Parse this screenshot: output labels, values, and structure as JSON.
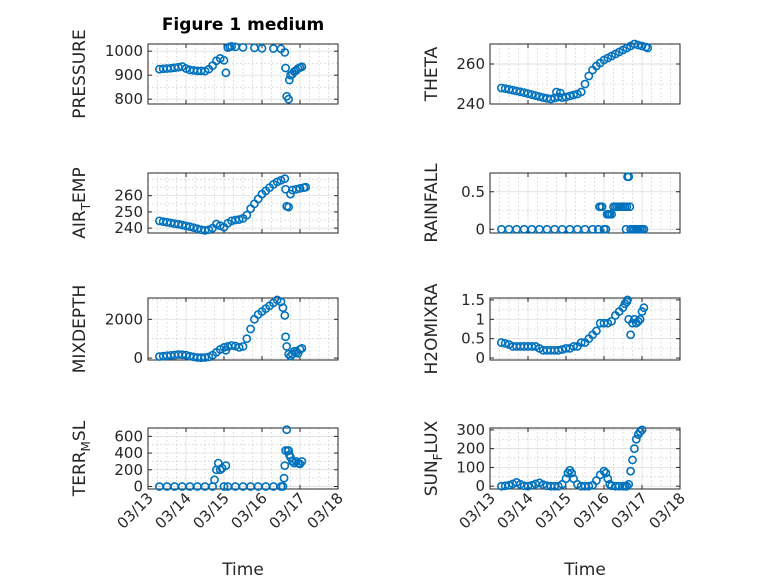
{
  "figure": {
    "title": "Figure 1 medium",
    "marker_color": "#0072BD"
  },
  "chart_data": [
    {
      "type": "scatter",
      "ylabel": "PRESSURE",
      "xlabel": "",
      "title": "Figure 1 medium",
      "xlim": [
        "03/13",
        "03/18"
      ],
      "ylim": [
        780,
        1030
      ],
      "yticks": [
        800,
        900,
        1000
      ],
      "ytick_labels": [
        "800",
        "900",
        "1000"
      ],
      "yminor": [
        850,
        950
      ],
      "x_tick_labels_shown": false,
      "grid": true,
      "x": [
        0.3,
        0.4,
        0.5,
        0.6,
        0.7,
        0.8,
        0.9,
        1.0,
        1.1,
        1.2,
        1.3,
        1.4,
        1.5,
        1.6,
        1.7,
        1.8,
        1.9,
        2.0,
        2.05,
        2.1,
        2.15,
        2.2,
        2.3,
        2.5,
        2.8,
        3.0,
        3.3,
        3.5,
        3.6,
        3.62,
        3.65,
        3.7,
        3.72,
        3.75,
        3.8,
        3.85,
        3.9,
        3.95,
        4.0,
        4.05
      ],
      "y": [
        925,
        927,
        928,
        929,
        931,
        933,
        936,
        928,
        922,
        920,
        918,
        918,
        917,
        925,
        940,
        960,
        970,
        962,
        910,
        1015,
        1018,
        1020,
        1018,
        1016,
        1014,
        1012,
        1011,
        1010,
        995,
        930,
        812,
        800,
        880,
        900,
        905,
        915,
        920,
        928,
        932,
        935
      ]
    },
    {
      "type": "scatter",
      "ylabel": "THETA",
      "xlabel": "",
      "xlim": [
        "03/13",
        "03/18"
      ],
      "ylim": [
        240,
        270
      ],
      "yticks": [
        240,
        260
      ],
      "ytick_labels": [
        "240",
        "260"
      ],
      "yminor": [
        250
      ],
      "x_tick_labels_shown": false,
      "grid": true,
      "x": [
        0.3,
        0.4,
        0.5,
        0.6,
        0.7,
        0.8,
        0.9,
        1.0,
        1.1,
        1.2,
        1.3,
        1.4,
        1.5,
        1.6,
        1.7,
        1.75,
        1.8,
        1.85,
        1.9,
        2.0,
        2.1,
        2.2,
        2.3,
        2.4,
        2.5,
        2.6,
        2.7,
        2.8,
        2.9,
        3.0,
        3.1,
        3.2,
        3.3,
        3.4,
        3.5,
        3.6,
        3.7,
        3.8,
        3.9,
        4.0,
        4.1,
        4.15
      ],
      "y": [
        248,
        247.7,
        247.3,
        246.9,
        246.5,
        246.1,
        245.7,
        245.2,
        244.7,
        244.2,
        243.7,
        243.2,
        242.8,
        242.5,
        243,
        246,
        243.5,
        245.5,
        243.2,
        243.5,
        244,
        244.5,
        245,
        246,
        250,
        254,
        257,
        259,
        260.5,
        262,
        263,
        264,
        265,
        266,
        267,
        268,
        269,
        270,
        269.5,
        269,
        268.5,
        268
      ]
    },
    {
      "type": "scatter",
      "ylabel": "AIR_TEMP",
      "xlabel": "",
      "xlim": [
        "03/13",
        "03/18"
      ],
      "ylim": [
        237,
        274
      ],
      "yticks": [
        240,
        250,
        260
      ],
      "ytick_labels": [
        "240",
        "250",
        "260"
      ],
      "yminor": [
        245,
        255,
        265,
        270
      ],
      "x_tick_labels_shown": false,
      "grid": true,
      "x": [
        0.3,
        0.4,
        0.5,
        0.6,
        0.7,
        0.8,
        0.9,
        1.0,
        1.1,
        1.2,
        1.3,
        1.4,
        1.5,
        1.6,
        1.7,
        1.8,
        1.9,
        2.0,
        2.1,
        2.2,
        2.3,
        2.4,
        2.5,
        2.6,
        2.7,
        2.8,
        2.9,
        3.0,
        3.1,
        3.2,
        3.3,
        3.4,
        3.5,
        3.6,
        3.62,
        3.65,
        3.7,
        3.75,
        3.8,
        3.9,
        4.0,
        4.1,
        4.15
      ],
      "y": [
        244.5,
        244,
        243.6,
        243.2,
        242.8,
        242.4,
        241.9,
        241.4,
        240.9,
        240.3,
        239.6,
        239,
        238.6,
        239,
        240,
        242.5,
        241.5,
        240.5,
        243,
        244.5,
        245,
        245.3,
        246,
        248,
        252,
        255,
        258,
        261,
        263,
        265,
        267,
        268.5,
        269.5,
        270.5,
        264,
        253.5,
        253,
        261,
        263.5,
        264,
        264.5,
        265,
        265.3
      ]
    },
    {
      "type": "scatter",
      "ylabel": "RAINFALL",
      "xlabel": "",
      "xlim": [
        "03/13",
        "03/18"
      ],
      "ylim": [
        -0.05,
        0.75
      ],
      "yticks": [
        0,
        0.5
      ],
      "ytick_labels": [
        "0",
        "0.5"
      ],
      "yminor": [
        0.25
      ],
      "x_tick_labels_shown": false,
      "grid": true,
      "x": [
        0.3,
        0.5,
        0.7,
        0.9,
        1.1,
        1.3,
        1.5,
        1.7,
        1.9,
        2.1,
        2.3,
        2.5,
        2.7,
        2.85,
        2.88,
        2.9,
        2.95,
        3.0,
        3.05,
        3.08,
        3.12,
        3.15,
        3.2,
        3.25,
        3.3,
        3.35,
        3.4,
        3.45,
        3.5,
        3.55,
        3.58,
        3.6,
        3.62,
        3.65,
        3.68,
        3.7,
        3.75,
        3.8,
        3.85,
        3.9,
        3.95,
        4.0,
        4.05
      ],
      "y": [
        0,
        0,
        0,
        0,
        0,
        0,
        0,
        0,
        0,
        0,
        0,
        0,
        0,
        0,
        0.3,
        0.3,
        0.3,
        0,
        0,
        0.2,
        0.2,
        0.2,
        0.2,
        0.3,
        0.3,
        0.3,
        0.3,
        0.3,
        0.3,
        0.3,
        0,
        0.3,
        0.7,
        0.7,
        0.3,
        0,
        0,
        0,
        0,
        0,
        0,
        0,
        0
      ]
    },
    {
      "type": "scatter",
      "ylabel": "MIXDEPTH",
      "xlabel": "",
      "xlim": [
        "03/13",
        "03/18"
      ],
      "ylim": [
        -100,
        3100
      ],
      "yticks": [
        0,
        2000
      ],
      "ytick_labels": [
        "0",
        "2000"
      ],
      "yminor": [
        1000,
        3000
      ],
      "x_tick_labels_shown": false,
      "grid": true,
      "x": [
        0.3,
        0.4,
        0.5,
        0.6,
        0.7,
        0.8,
        0.9,
        1.0,
        1.1,
        1.2,
        1.3,
        1.4,
        1.5,
        1.6,
        1.7,
        1.8,
        1.9,
        2.0,
        2.05,
        2.1,
        2.2,
        2.3,
        2.4,
        2.5,
        2.6,
        2.7,
        2.8,
        2.9,
        3.0,
        3.1,
        3.2,
        3.3,
        3.4,
        3.5,
        3.55,
        3.6,
        3.62,
        3.65,
        3.7,
        3.75,
        3.8,
        3.85,
        3.9,
        3.95,
        4.0,
        4.05
      ],
      "y": [
        80,
        100,
        120,
        140,
        160,
        180,
        170,
        150,
        100,
        60,
        30,
        20,
        30,
        60,
        150,
        300,
        450,
        550,
        400,
        600,
        650,
        620,
        550,
        600,
        1000,
        1500,
        2000,
        2250,
        2400,
        2550,
        2700,
        2850,
        3000,
        2900,
        2600,
        2200,
        1100,
        600,
        200,
        100,
        200,
        350,
        300,
        250,
        450,
        500
      ]
    },
    {
      "type": "scatter",
      "ylabel": "H2OMIXRA",
      "xlabel": "",
      "xlim": [
        "03/13",
        "03/18"
      ],
      "ylim": [
        -0.05,
        1.55
      ],
      "yticks": [
        0,
        0.5,
        1,
        1.5
      ],
      "ytick_labels": [
        "0",
        "0.5",
        "1",
        "1.5"
      ],
      "yminor": [
        0.25,
        0.75,
        1.25
      ],
      "x_tick_labels_shown": false,
      "grid": true,
      "x": [
        0.3,
        0.4,
        0.5,
        0.6,
        0.7,
        0.8,
        0.9,
        1.0,
        1.1,
        1.2,
        1.3,
        1.4,
        1.5,
        1.6,
        1.7,
        1.8,
        1.9,
        2.0,
        2.1,
        2.2,
        2.3,
        2.4,
        2.5,
        2.6,
        2.7,
        2.8,
        2.9,
        3.0,
        3.1,
        3.2,
        3.3,
        3.4,
        3.5,
        3.55,
        3.6,
        3.62,
        3.65,
        3.7,
        3.75,
        3.8,
        3.85,
        3.9,
        3.95,
        4.0,
        4.05
      ],
      "y": [
        0.4,
        0.38,
        0.35,
        0.3,
        0.3,
        0.3,
        0.3,
        0.3,
        0.3,
        0.3,
        0.25,
        0.2,
        0.2,
        0.2,
        0.2,
        0.2,
        0.22,
        0.25,
        0.25,
        0.3,
        0.3,
        0.4,
        0.4,
        0.5,
        0.6,
        0.7,
        0.9,
        0.9,
        0.9,
        0.95,
        1.1,
        1.2,
        1.3,
        1.4,
        1.45,
        1.5,
        1.0,
        0.6,
        0.9,
        1.0,
        0.9,
        0.95,
        1.0,
        1.2,
        1.3
      ]
    },
    {
      "type": "scatter",
      "ylabel": "TERR_MSL",
      "xlabel": "Time",
      "xlim": [
        "03/13",
        "03/18"
      ],
      "ylim": [
        -30,
        700
      ],
      "yticks": [
        0,
        200,
        400,
        600
      ],
      "ytick_labels": [
        "0",
        "200",
        "400",
        "600"
      ],
      "yminor": [
        100,
        300,
        500
      ],
      "x_tick_labels": [
        "03/13",
        "03/14",
        "03/15",
        "03/16",
        "03/17",
        "03/18"
      ],
      "grid": true,
      "x": [
        0.3,
        0.5,
        0.7,
        0.9,
        1.1,
        1.3,
        1.5,
        1.7,
        1.75,
        1.8,
        1.85,
        1.9,
        1.95,
        2.0,
        2.05,
        2.1,
        2.3,
        2.5,
        2.7,
        2.9,
        3.1,
        3.3,
        3.5,
        3.55,
        3.58,
        3.6,
        3.62,
        3.65,
        3.68,
        3.7,
        3.72,
        3.75,
        3.8,
        3.85,
        3.9,
        3.95,
        4.0,
        4.05
      ],
      "y": [
        0,
        0,
        0,
        0,
        0,
        0,
        0,
        0,
        80,
        200,
        280,
        200,
        220,
        0,
        250,
        0,
        0,
        0,
        0,
        0,
        0,
        0,
        0,
        0,
        100,
        250,
        430,
        680,
        430,
        430,
        380,
        350,
        300,
        280,
        300,
        280,
        270,
        300
      ]
    },
    {
      "type": "scatter",
      "ylabel": "SUN_FLUX",
      "xlabel": "Time",
      "xlim": [
        "03/13",
        "03/18"
      ],
      "ylim": [
        -15,
        310
      ],
      "yticks": [
        0,
        100,
        200,
        300
      ],
      "ytick_labels": [
        "0",
        "100",
        "200",
        "300"
      ],
      "yminor": [
        50,
        150,
        250
      ],
      "x_tick_labels": [
        "03/13",
        "03/14",
        "03/15",
        "03/16",
        "03/17",
        "03/18"
      ],
      "grid": true,
      "x": [
        0.3,
        0.4,
        0.5,
        0.6,
        0.7,
        0.8,
        0.9,
        1.0,
        1.1,
        1.2,
        1.3,
        1.4,
        1.5,
        1.6,
        1.7,
        1.8,
        1.9,
        2.0,
        2.05,
        2.1,
        2.15,
        2.2,
        2.3,
        2.4,
        2.5,
        2.6,
        2.7,
        2.8,
        2.9,
        3.0,
        3.05,
        3.1,
        3.15,
        3.2,
        3.3,
        3.4,
        3.5,
        3.55,
        3.6,
        3.65,
        3.7,
        3.75,
        3.8,
        3.85,
        3.9,
        3.95,
        4.0
      ],
      "y": [
        0,
        2,
        5,
        12,
        20,
        10,
        2,
        0,
        5,
        12,
        18,
        8,
        2,
        0,
        0,
        0,
        10,
        40,
        70,
        85,
        70,
        40,
        10,
        0,
        0,
        0,
        5,
        30,
        60,
        80,
        70,
        40,
        10,
        2,
        0,
        0,
        0,
        0,
        0,
        10,
        80,
        140,
        200,
        250,
        275,
        290,
        300
      ]
    }
  ]
}
